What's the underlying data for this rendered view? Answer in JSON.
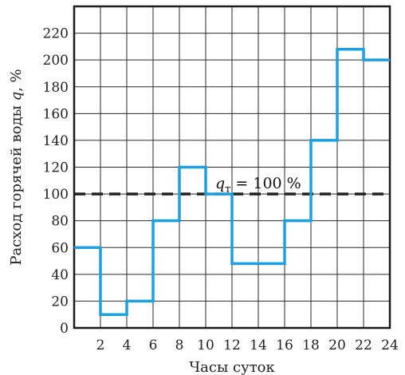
{
  "chart_data": {
    "type": "line",
    "step": true,
    "xlabel": "Часы суток",
    "ylabel_parts": [
      "Расход горячей воды ",
      "q",
      ", %"
    ],
    "xlim": [
      0,
      24
    ],
    "ylim": [
      0,
      240
    ],
    "x_ticks": [
      2,
      4,
      6,
      8,
      10,
      12,
      14,
      16,
      18,
      20,
      22,
      24
    ],
    "y_ticks": [
      0,
      20,
      40,
      60,
      80,
      100,
      120,
      140,
      160,
      180,
      200,
      220
    ],
    "grid": true,
    "series": [
      {
        "color": "#1ba1e2",
        "segments": [
          {
            "x0": 0,
            "x1": 2,
            "y": 60
          },
          {
            "x0": 2,
            "x1": 4,
            "y": 10
          },
          {
            "x0": 4,
            "x1": 6,
            "y": 20
          },
          {
            "x0": 6,
            "x1": 8,
            "y": 80
          },
          {
            "x0": 8,
            "x1": 10,
            "y": 120
          },
          {
            "x0": 10,
            "x1": 12,
            "y": 100
          },
          {
            "x0": 12,
            "x1": 16,
            "y": 48
          },
          {
            "x0": 16,
            "x1": 18,
            "y": 80
          },
          {
            "x0": 18,
            "x1": 20,
            "y": 140
          },
          {
            "x0": 20,
            "x1": 22,
            "y": 208
          },
          {
            "x0": 22,
            "x1": 24,
            "y": 200
          }
        ]
      }
    ],
    "reference_line": {
      "y": 100,
      "style": "dashed",
      "color": "#222222",
      "label_symbol": "q",
      "label_sub": "т",
      "label_rest": " = 100 %"
    }
  }
}
